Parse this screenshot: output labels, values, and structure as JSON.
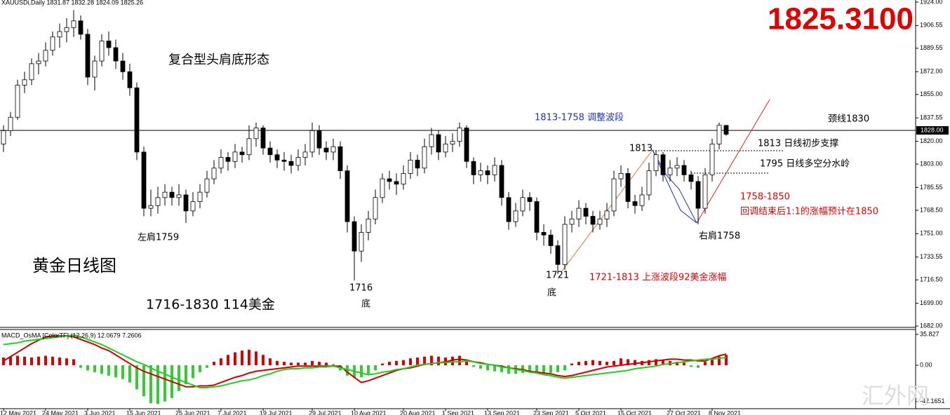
{
  "header": {
    "symbol_info": "XAUUSDi,Daily  1831.87 1832.28 1824.09 1825.26",
    "big_price": "1825.3100",
    "price_tag": "1828.00",
    "watermark": "汇外网"
  },
  "chart_data": [
    {
      "type": "candlestick",
      "annotations": [
        "复合型头肩底形态",
        "黄金日线图",
        "1716-1830  114美金",
        "左肩1759",
        "1716",
        "底",
        "1721",
        "底",
        "1721-1813 上涨波段92美金涨幅",
        "1813-1758 调整波段",
        "颈线1830",
        "1813",
        "1813 日线初步支撑",
        "1795 日线多空分水岭",
        "1758-1850",
        "回调结束后1:1的涨幅预计在1850",
        "右肩1758"
      ],
      "categories": [
        "12 May 2021",
        null,
        null,
        null,
        null,
        null,
        "24 May 2021",
        null,
        null,
        null,
        null,
        null,
        "3 Jun 2021",
        null,
        null,
        null,
        null,
        null,
        "15 Jun 2021",
        null,
        null,
        null,
        null,
        null,
        null,
        "25 Jun 2021",
        null,
        null,
        null,
        null,
        null,
        "7 Jul 2021",
        null,
        null,
        null,
        null,
        null,
        "19 Jul 2021",
        null,
        null,
        null,
        null,
        null,
        null,
        "29 Jul 2021",
        null,
        null,
        null,
        null,
        null,
        "10 Aug 2021",
        null,
        null,
        null,
        null,
        null,
        null,
        "20 Aug 2021",
        null,
        null,
        null,
        null,
        null,
        "1 Sep 2021",
        null,
        null,
        null,
        null,
        null,
        "13 Sep 2021",
        null,
        null,
        null,
        null,
        null,
        null,
        "23 Sep 2021",
        null,
        null,
        null,
        null,
        null,
        "5 Oct 2021",
        null,
        null,
        null,
        null,
        null,
        "15 Oct 2021",
        null,
        null,
        null,
        null,
        null,
        null,
        "27 Oct 2021",
        null,
        null,
        null,
        null,
        null,
        "8 Nov 2021",
        null,
        null
      ],
      "ohlc": [
        [
          1818,
          1832,
          1812,
          1828
        ],
        [
          1828,
          1842,
          1824,
          1838
        ],
        [
          1838,
          1866,
          1836,
          1862
        ],
        [
          1862,
          1872,
          1856,
          1866
        ],
        [
          1866,
          1882,
          1862,
          1878
        ],
        [
          1878,
          1886,
          1870,
          1880
        ],
        [
          1880,
          1894,
          1876,
          1888
        ],
        [
          1888,
          1902,
          1884,
          1898
        ],
        [
          1898,
          1908,
          1890,
          1902
        ],
        [
          1902,
          1912,
          1894,
          1905
        ],
        [
          1905,
          1918,
          1898,
          1910
        ],
        [
          1910,
          1914,
          1896,
          1900
        ],
        [
          1900,
          1904,
          1862,
          1868
        ],
        [
          1868,
          1884,
          1858,
          1880
        ],
        [
          1880,
          1900,
          1876,
          1895
        ],
        [
          1895,
          1902,
          1884,
          1890
        ],
        [
          1890,
          1896,
          1874,
          1880
        ],
        [
          1880,
          1886,
          1866,
          1872
        ],
        [
          1872,
          1878,
          1854,
          1860
        ],
        [
          1860,
          1864,
          1806,
          1812
        ],
        [
          1812,
          1816,
          1764,
          1770
        ],
        [
          1770,
          1784,
          1764,
          1772
        ],
        [
          1772,
          1786,
          1766,
          1778
        ],
        [
          1778,
          1788,
          1772,
          1782
        ],
        [
          1782,
          1786,
          1772,
          1778
        ],
        [
          1778,
          1788,
          1772,
          1780
        ],
        [
          1780,
          1784,
          1759,
          1768
        ],
        [
          1768,
          1782,
          1764,
          1775
        ],
        [
          1775,
          1788,
          1770,
          1782
        ],
        [
          1782,
          1798,
          1778,
          1792
        ],
        [
          1792,
          1806,
          1788,
          1800
        ],
        [
          1800,
          1814,
          1796,
          1808
        ],
        [
          1808,
          1812,
          1798,
          1805
        ],
        [
          1805,
          1818,
          1800,
          1812
        ],
        [
          1812,
          1816,
          1804,
          1810
        ],
        [
          1810,
          1832,
          1806,
          1822
        ],
        [
          1822,
          1834,
          1816,
          1830
        ],
        [
          1830,
          1832,
          1810,
          1815
        ],
        [
          1815,
          1820,
          1804,
          1810
        ],
        [
          1810,
          1814,
          1800,
          1806
        ],
        [
          1806,
          1812,
          1798,
          1805
        ],
        [
          1805,
          1810,
          1796,
          1802
        ],
        [
          1802,
          1814,
          1798,
          1808
        ],
        [
          1808,
          1818,
          1802,
          1812
        ],
        [
          1812,
          1834,
          1808,
          1828
        ],
        [
          1828,
          1832,
          1810,
          1815
        ],
        [
          1815,
          1820,
          1806,
          1812
        ],
        [
          1812,
          1822,
          1806,
          1816
        ],
        [
          1816,
          1820,
          1792,
          1798
        ],
        [
          1798,
          1802,
          1752,
          1760
        ],
        [
          1760,
          1764,
          1716,
          1738
        ],
        [
          1738,
          1758,
          1730,
          1752
        ],
        [
          1752,
          1768,
          1746,
          1762
        ],
        [
          1762,
          1784,
          1758,
          1778
        ],
        [
          1778,
          1796,
          1774,
          1792
        ],
        [
          1792,
          1798,
          1784,
          1790
        ],
        [
          1790,
          1796,
          1780,
          1788
        ],
        [
          1788,
          1802,
          1784,
          1796
        ],
        [
          1796,
          1812,
          1792,
          1806
        ],
        [
          1806,
          1810,
          1794,
          1800
        ],
        [
          1800,
          1822,
          1796,
          1816
        ],
        [
          1816,
          1830,
          1810,
          1825
        ],
        [
          1825,
          1828,
          1806,
          1812
        ],
        [
          1812,
          1824,
          1808,
          1818
        ],
        [
          1818,
          1826,
          1812,
          1820
        ],
        [
          1820,
          1834,
          1816,
          1830
        ],
        [
          1830,
          1832,
          1800,
          1805
        ],
        [
          1805,
          1808,
          1788,
          1795
        ],
        [
          1795,
          1804,
          1790,
          1798
        ],
        [
          1798,
          1802,
          1788,
          1795
        ],
        [
          1795,
          1808,
          1790,
          1802
        ],
        [
          1802,
          1806,
          1772,
          1778
        ],
        [
          1778,
          1782,
          1754,
          1760
        ],
        [
          1760,
          1774,
          1756,
          1768
        ],
        [
          1768,
          1784,
          1764,
          1778
        ],
        [
          1778,
          1782,
          1768,
          1775
        ],
        [
          1775,
          1778,
          1746,
          1752
        ],
        [
          1752,
          1758,
          1742,
          1750
        ],
        [
          1750,
          1754,
          1736,
          1742
        ],
        [
          1742,
          1746,
          1721,
          1728
        ],
        [
          1728,
          1764,
          1724,
          1758
        ],
        [
          1758,
          1768,
          1752,
          1762
        ],
        [
          1762,
          1776,
          1756,
          1770
        ],
        [
          1770,
          1774,
          1758,
          1764
        ],
        [
          1764,
          1768,
          1752,
          1758
        ],
        [
          1758,
          1768,
          1754,
          1762
        ],
        [
          1762,
          1774,
          1756,
          1768
        ],
        [
          1768,
          1798,
          1764,
          1792
        ],
        [
          1792,
          1802,
          1786,
          1796
        ],
        [
          1796,
          1800,
          1770,
          1775
        ],
        [
          1775,
          1780,
          1766,
          1772
        ],
        [
          1772,
          1786,
          1768,
          1780
        ],
        [
          1780,
          1804,
          1776,
          1798
        ],
        [
          1798,
          1813,
          1794,
          1810
        ],
        [
          1810,
          1812,
          1790,
          1795
        ],
        [
          1795,
          1806,
          1790,
          1800
        ],
        [
          1800,
          1808,
          1794,
          1802
        ],
        [
          1802,
          1806,
          1790,
          1795
        ],
        [
          1795,
          1798,
          1784,
          1790
        ],
        [
          1790,
          1794,
          1758,
          1770
        ],
        [
          1770,
          1800,
          1766,
          1795
        ],
        [
          1795,
          1822,
          1790,
          1818
        ],
        [
          1818,
          1834,
          1814,
          1832
        ],
        [
          1831.87,
          1832.28,
          1824.09,
          1825.26
        ]
      ],
      "up_color": "#ffffff",
      "down_color": "#000000",
      "ylim": [
        1681,
        1925.6
      ],
      "yticks": [
        {
          "value": 1924,
          "label": "1924.00"
        },
        1906.55,
        1889.55,
        {
          "value": 1872,
          "label": "1872.00"
        },
        {
          "value": 1855,
          "label": "1855.00"
        },
        1837.55,
        {
          "value": 1820,
          "label": "1820.00"
        },
        {
          "value": 1803,
          "label": "1803.00"
        },
        1785.55,
        {
          "value": 1768.5,
          "label": "1768.50"
        },
        {
          "value": 1751,
          "label": "1751.00"
        },
        1733.55,
        {
          "value": 1716.5,
          "label": "1716.50"
        },
        {
          "value": 1699,
          "label": "1699.00"
        },
        {
          "value": 1682,
          "label": "1682.00"
        }
      ]
    },
    {
      "type": "macd",
      "title": "MACD_OsMA [ColorTF] (12,26,9) 12.0679 7.2606",
      "histogram": [
        9,
        10,
        11,
        10,
        9,
        10,
        11,
        10,
        9,
        8,
        7,
        -3,
        -6,
        -8,
        -10,
        -12,
        -14,
        -16,
        -20,
        -28,
        -36,
        -44,
        -45,
        -42,
        -38,
        -30,
        -22,
        -15,
        -8,
        -3,
        4,
        8,
        12,
        15,
        17,
        18,
        16,
        12,
        8,
        5,
        4,
        3,
        3,
        3,
        5,
        4,
        3,
        1,
        -6,
        -12,
        -15,
        -14,
        -10,
        -6,
        2,
        4,
        5,
        6,
        8,
        9,
        10,
        11,
        10,
        9,
        10,
        11,
        4,
        -2,
        -4,
        -6,
        -7,
        -8,
        -10,
        -10,
        -9,
        -8,
        -9,
        -10,
        -9,
        -8,
        -6,
        2,
        4,
        5,
        6,
        5,
        4,
        5,
        8,
        7,
        6,
        5,
        6,
        7,
        6,
        5,
        4,
        3,
        -2,
        -3,
        4,
        8,
        10,
        12
      ],
      "positive_color": "#dd0000",
      "negative_color": "#33cc33",
      "series": [
        {
          "color": "#cc0000",
          "values": [
            5,
            10,
            15,
            20,
            25,
            29,
            33,
            34,
            34,
            34,
            33,
            30,
            27,
            24,
            20,
            17,
            12,
            7,
            2,
            -3,
            -7,
            -10,
            -13,
            -16,
            -19,
            -22,
            -25,
            -25,
            -24,
            -24,
            -23,
            -20,
            -17,
            -14,
            -12,
            -9,
            -7,
            -6,
            -5,
            -4,
            -3,
            -2,
            -1,
            -1,
            -1,
            -1,
            -1,
            -1,
            -1,
            -8,
            -14,
            -20,
            -18,
            -15,
            -12,
            -9,
            -6,
            -4,
            -3,
            -1,
            1,
            2,
            3,
            4,
            6,
            7,
            6,
            4,
            3,
            1,
            0,
            -1,
            -3,
            -4,
            -5,
            -7,
            -8,
            -9,
            -10,
            -12,
            -13,
            -12,
            -10,
            -8,
            -6,
            -4,
            -2,
            -1,
            0,
            1,
            2,
            3,
            4,
            5,
            6,
            7,
            7,
            6,
            6,
            5,
            5,
            8,
            11,
            13
          ]
        },
        {
          "color": "#22cc22",
          "values": [
            24,
            25,
            26,
            28,
            29,
            30,
            31,
            32,
            33,
            34,
            35,
            33,
            30,
            27,
            24,
            20,
            16,
            12,
            8,
            4,
            1,
            -3,
            -7,
            -10,
            -14,
            -17,
            -20,
            -23,
            -26,
            -26,
            -25,
            -24,
            -22,
            -20,
            -18,
            -17,
            -15,
            -12,
            -10,
            -7,
            -5,
            -4,
            -4,
            -3,
            -3,
            -2,
            -2,
            -1,
            -3,
            -5,
            -7,
            -9,
            -11,
            -10,
            -8,
            -7,
            -5,
            -4,
            -2,
            0,
            1,
            2,
            3,
            3,
            4,
            4,
            5,
            4,
            2,
            1,
            0,
            -2,
            -3,
            -5,
            -6,
            -8,
            -9,
            -11,
            -12,
            -14,
            -15,
            -14,
            -13,
            -12,
            -11,
            -10,
            -9,
            -8,
            -7,
            -6,
            -4,
            -3,
            -2,
            -1,
            1,
            2,
            3,
            4,
            5,
            6,
            7,
            7,
            8,
            9
          ]
        }
      ],
      "ylim": [
        -50.4,
        41.5
      ],
      "yticks": [
        35.827,
        {
          "value": 0,
          "label": "0.00"
        },
        -42.1651
      ]
    }
  ]
}
